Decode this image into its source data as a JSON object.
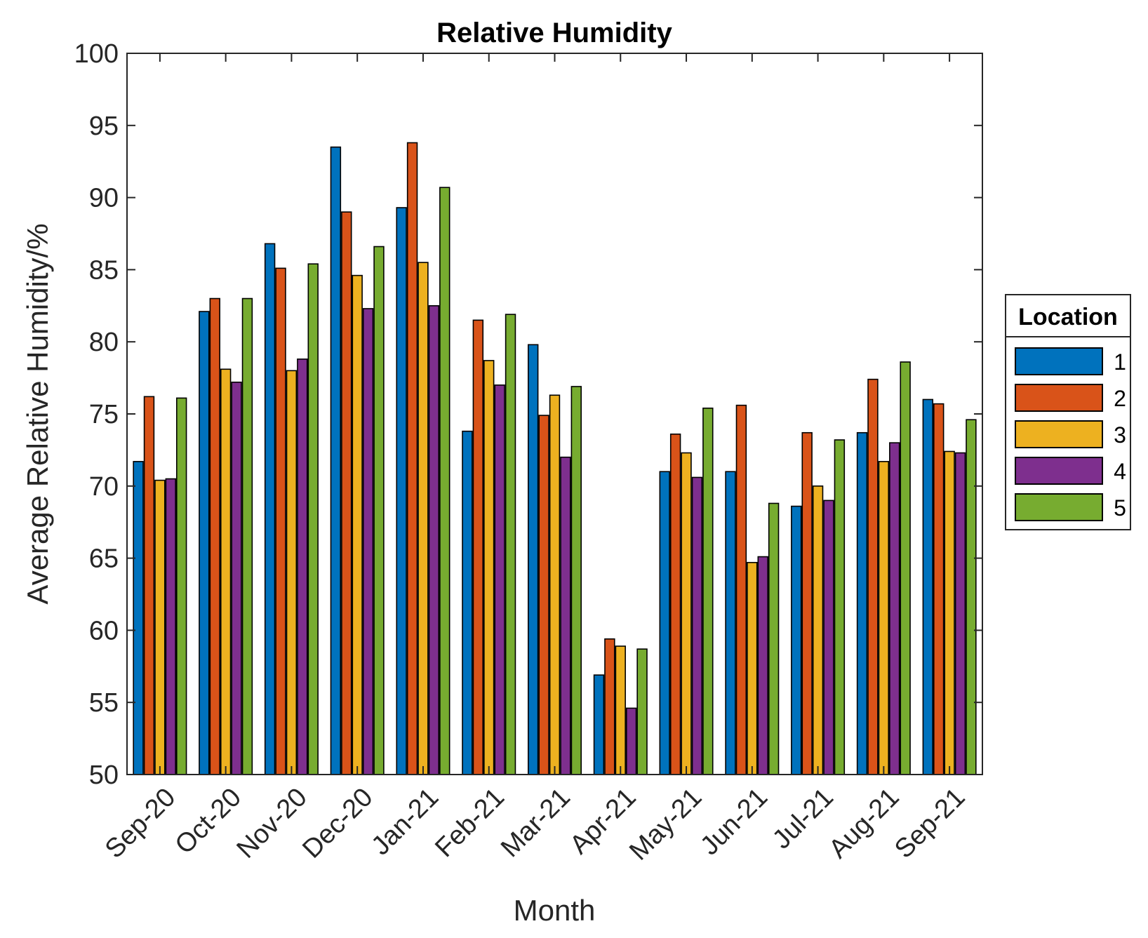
{
  "chart_data": {
    "type": "bar",
    "title": "Relative Humidity",
    "xlabel": "Month",
    "ylabel": "Average Relative Humidity/%",
    "ylim": [
      50,
      100
    ],
    "yticks": [
      50,
      55,
      60,
      65,
      70,
      75,
      80,
      85,
      90,
      95,
      100
    ],
    "grid": false,
    "legend": {
      "title": "Location",
      "position": "right"
    },
    "categories": [
      "Sep-20",
      "Oct-20",
      "Nov-20",
      "Dec-20",
      "Jan-21",
      "Feb-21",
      "Mar-21",
      "Apr-21",
      "May-21",
      "Jun-21",
      "Jul-21",
      "Aug-21",
      "Sep-21"
    ],
    "series": [
      {
        "name": "1",
        "color": "#0072BD",
        "values": [
          71.7,
          82.1,
          86.8,
          93.5,
          89.3,
          73.8,
          79.8,
          56.9,
          71.0,
          71.0,
          68.6,
          73.7,
          76.0
        ]
      },
      {
        "name": "2",
        "color": "#D95319",
        "values": [
          76.2,
          83.0,
          85.1,
          89.0,
          93.8,
          81.5,
          74.9,
          59.4,
          73.6,
          75.6,
          73.7,
          77.4,
          75.7
        ]
      },
      {
        "name": "3",
        "color": "#EDB120",
        "values": [
          70.4,
          78.1,
          78.0,
          84.6,
          85.5,
          78.7,
          76.3,
          58.9,
          72.3,
          64.7,
          70.0,
          71.7,
          72.4
        ]
      },
      {
        "name": "4",
        "color": "#7E2F8E",
        "values": [
          70.5,
          77.2,
          78.8,
          82.3,
          82.5,
          77.0,
          72.0,
          54.6,
          70.6,
          65.1,
          69.0,
          73.0,
          72.3
        ]
      },
      {
        "name": "5",
        "color": "#77AC30",
        "values": [
          76.1,
          83.0,
          85.4,
          86.6,
          90.7,
          81.9,
          76.9,
          58.7,
          75.4,
          68.8,
          73.2,
          78.6,
          74.6
        ]
      }
    ]
  }
}
